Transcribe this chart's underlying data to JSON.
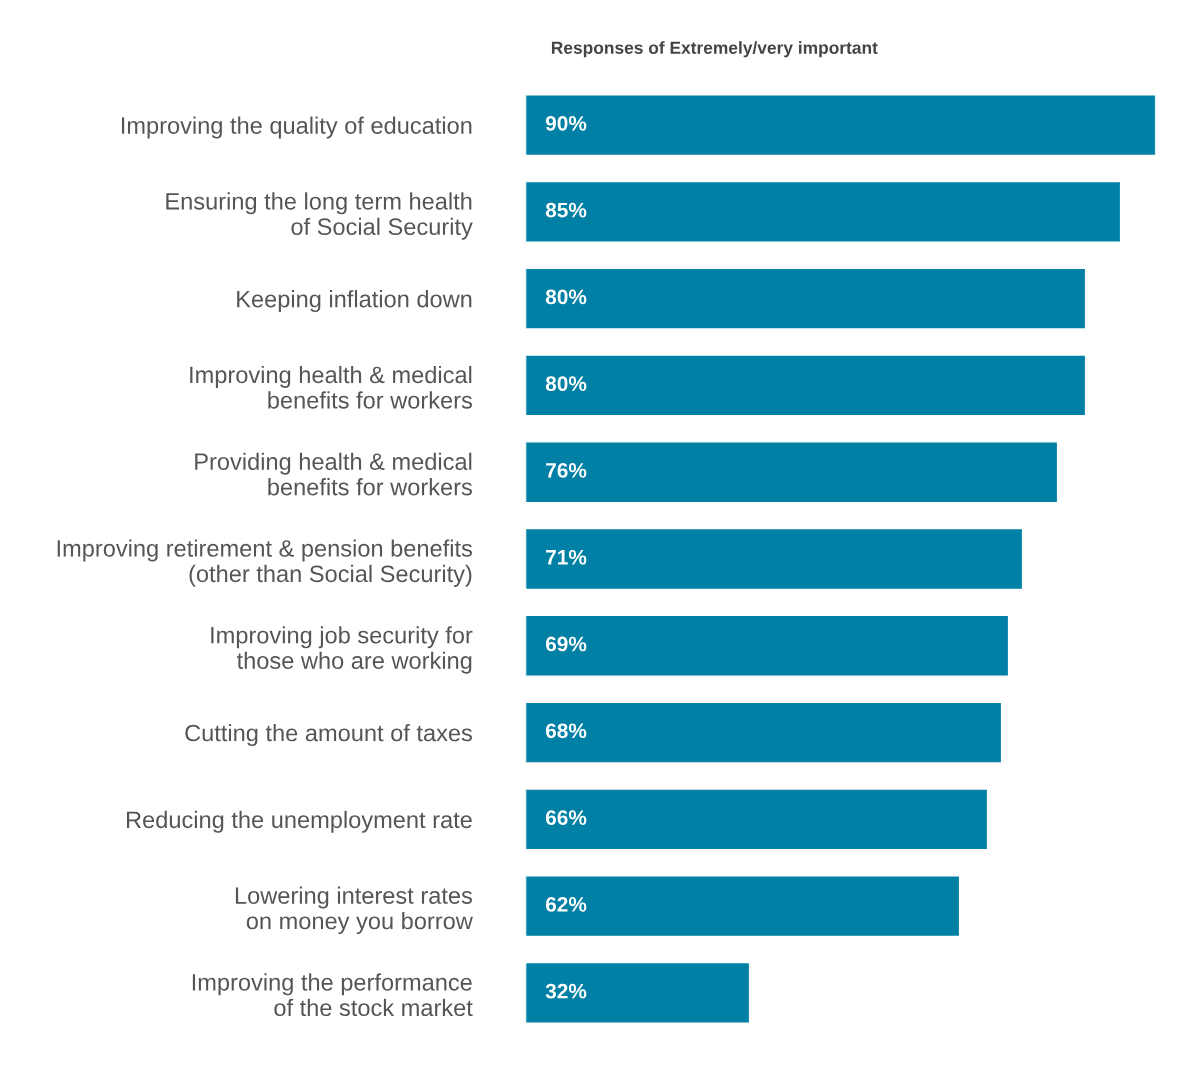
{
  "chart_data": {
    "type": "bar",
    "orientation": "horizontal",
    "title": "Responses of Extremely/very important",
    "categories": [
      "Improving the quality of education",
      "Ensuring the long term health\nof Social Security",
      "Keeping inflation down",
      "Improving health & medical\nbenefits for workers",
      "Providing health & medical\nbenefits for workers",
      "Improving retirement & pension benefits\n(other than Social Security)",
      "Improving job security for\nthose who are working",
      "Cutting the amount of taxes",
      "Reducing the unemployment rate",
      "Lowering interest rates\non money you borrow",
      "Improving the performance\nof the stock market"
    ],
    "values": [
      90,
      85,
      80,
      80,
      76,
      71,
      69,
      68,
      66,
      62,
      32
    ],
    "value_labels": [
      "90%",
      "85%",
      "80%",
      "80%",
      "76%",
      "71%",
      "69%",
      "68%",
      "66%",
      "62%",
      "32%"
    ],
    "color": "#0080a4",
    "tick_labels": "y",
    "grid": false,
    "legend": false
  }
}
